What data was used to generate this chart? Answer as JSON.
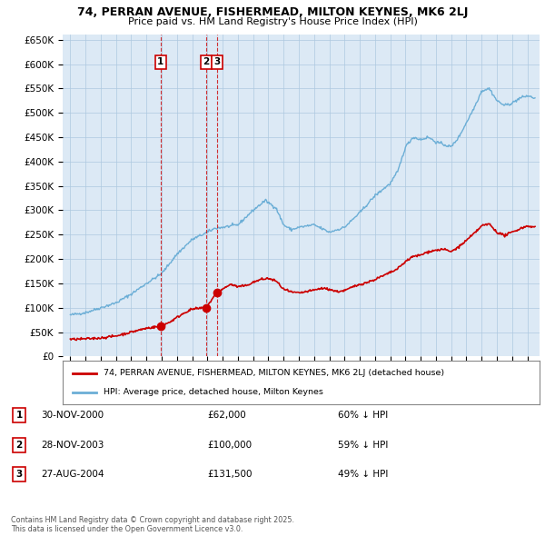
{
  "title": "74, PERRAN AVENUE, FISHERMEAD, MILTON KEYNES, MK6 2LJ",
  "subtitle": "Price paid vs. HM Land Registry's House Price Index (HPI)",
  "ylim": [
    0,
    660000
  ],
  "yticks": [
    0,
    50000,
    100000,
    150000,
    200000,
    250000,
    300000,
    350000,
    400000,
    450000,
    500000,
    550000,
    600000,
    650000
  ],
  "ytick_labels": [
    "£0",
    "£50K",
    "£100K",
    "£150K",
    "£200K",
    "£250K",
    "£300K",
    "£350K",
    "£400K",
    "£450K",
    "£500K",
    "£550K",
    "£600K",
    "£650K"
  ],
  "bg_color": "#ffffff",
  "chart_bg_color": "#dce9f5",
  "grid_color": "#aec8e0",
  "red_color": "#cc0000",
  "blue_color": "#6baed6",
  "transaction_dates": [
    2000.92,
    2003.91,
    2004.65
  ],
  "transaction_prices": [
    62000,
    100000,
    131500
  ],
  "legend_entries": [
    "74, PERRAN AVENUE, FISHERMEAD, MILTON KEYNES, MK6 2LJ (detached house)",
    "HPI: Average price, detached house, Milton Keynes"
  ],
  "table_data": [
    [
      "1",
      "30-NOV-2000",
      "£62,000",
      "60% ↓ HPI"
    ],
    [
      "2",
      "28-NOV-2003",
      "£100,000",
      "59% ↓ HPI"
    ],
    [
      "3",
      "27-AUG-2004",
      "£131,500",
      "49% ↓ HPI"
    ]
  ],
  "footnote": "Contains HM Land Registry data © Crown copyright and database right 2025.\nThis data is licensed under the Open Government Licence v3.0.",
  "xlim_start": 1994.5,
  "xlim_end": 2025.8
}
